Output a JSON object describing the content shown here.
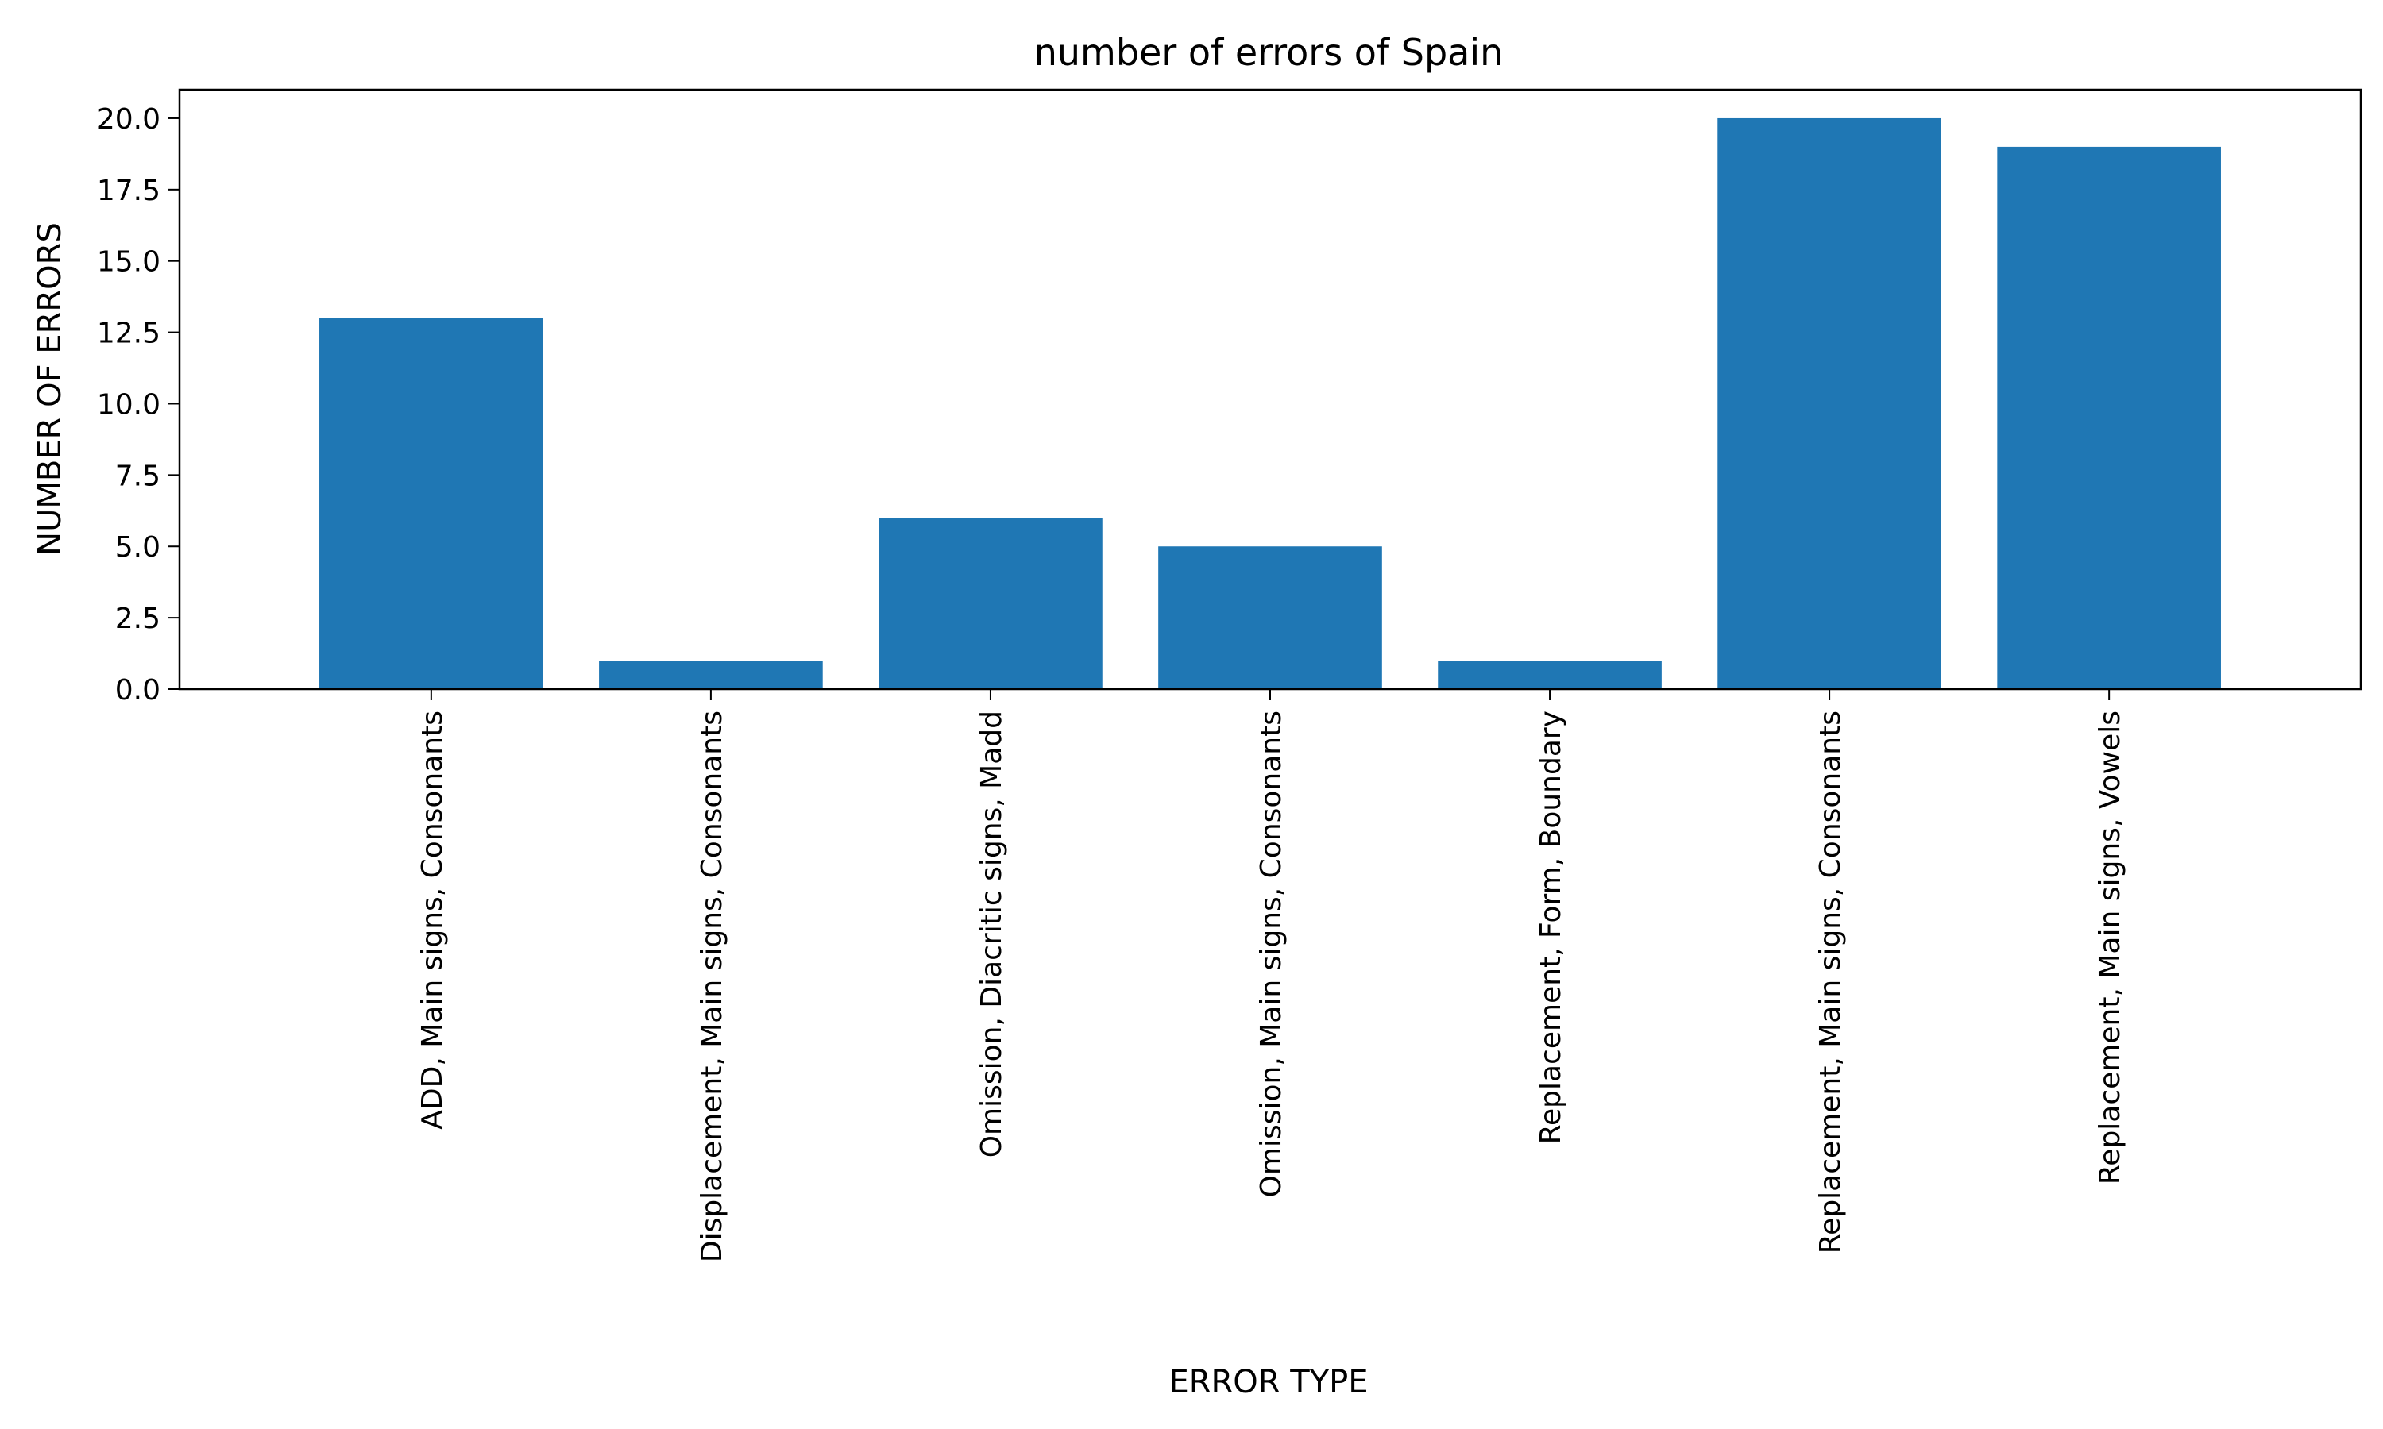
{
  "chart_data": {
    "type": "bar",
    "title": "number of errors of Spain",
    "xlabel": "ERROR TYPE",
    "ylabel": "NUMBER OF ERRORS",
    "categories": [
      "ADD, Main signs, Consonants",
      "Displacement, Main signs, Consonants",
      "Omission, Diacritic signs, Madd",
      "Omission, Main signs, Consonants",
      "Replacement, Form, Boundary",
      "Replacement, Main signs, Consonants",
      "Replacement, Main signs, Vowels"
    ],
    "values": [
      13,
      1,
      6,
      5,
      1,
      20,
      19
    ],
    "ylim": [
      0,
      21
    ],
    "yticks": [
      "0.0",
      "2.5",
      "5.0",
      "7.5",
      "10.0",
      "12.5",
      "15.0",
      "17.5",
      "20.0"
    ],
    "grid": false,
    "legend": "none",
    "bar_color": "#1f77b4"
  }
}
